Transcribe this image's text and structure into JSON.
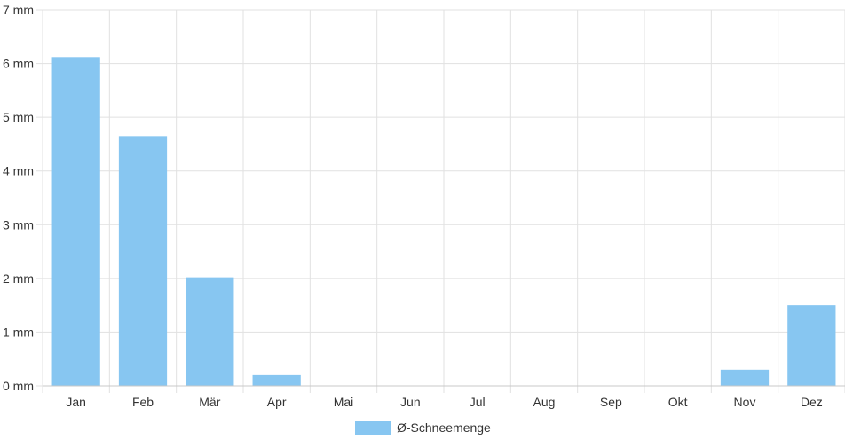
{
  "chart_data": {
    "type": "bar",
    "title": "",
    "xlabel": "",
    "ylabel": "",
    "categories": [
      "Jan",
      "Feb",
      "Mär",
      "Apr",
      "Mai",
      "Jun",
      "Jul",
      "Aug",
      "Sep",
      "Okt",
      "Nov",
      "Dez"
    ],
    "series": [
      {
        "name": "Ø-Schneemenge",
        "color": "#87c6f1",
        "values": [
          6.12,
          4.65,
          2.02,
          0.2,
          0,
          0,
          0,
          0,
          0,
          0,
          0.3,
          1.5
        ]
      }
    ],
    "ylim": [
      0,
      7
    ],
    "yticks": [
      0,
      1,
      2,
      3,
      4,
      5,
      6,
      7
    ],
    "ytick_labels": [
      "0 mm",
      "1 mm",
      "2 mm",
      "3 mm",
      "4 mm",
      "5 mm",
      "6 mm",
      "7 mm"
    ],
    "grid": true,
    "legend": "bottom-center",
    "colors": {
      "grid": "#e1e1e1",
      "axis": "#c8c8c8",
      "bar": "#87c6f1"
    }
  }
}
